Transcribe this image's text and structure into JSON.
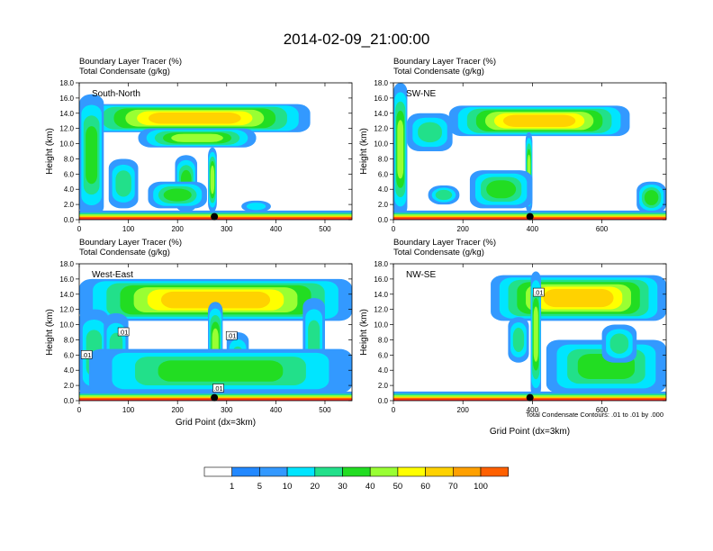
{
  "chart_data": {
    "type": "heatmap",
    "title": "2014-02-09_21:00:00",
    "colorbar": {
      "bin_labels": [
        "1",
        "5",
        "10",
        "20",
        "30",
        "40",
        "50",
        "60",
        "70",
        "100"
      ],
      "colors": [
        "#ffffff",
        "#2288ff",
        "#3399ff",
        "#00e5ff",
        "#22e08a",
        "#22dd22",
        "#99ff33",
        "#ffff00",
        "#ffd200",
        "#ffa000",
        "#ff6000",
        "#ff2020"
      ]
    },
    "footnote": "Total Condensate Contours: .01 to .01 by .000",
    "panels": [
      {
        "label": "South-North",
        "subtitle_line1": "Boundary Layer Tracer   (%)",
        "subtitle_line2": "Total Condensate   (g/kg)",
        "ylabel": "Height (km)",
        "xlabel": "",
        "ylim": [
          0,
          18
        ],
        "yticks": [
          "0.0",
          "2.0",
          "4.0",
          "6.0",
          "8.0",
          "10.0",
          "12.0",
          "14.0",
          "16.0",
          "18.0"
        ],
        "xlim": [
          0,
          555
        ],
        "xticks": [
          0,
          100,
          200,
          300,
          400,
          500
        ],
        "marker_x": 275,
        "contour_labels": [],
        "features": [
          {
            "kind": "anvil",
            "x0": 0,
            "x1": 470,
            "ybase": 11.5,
            "ytop": 15.2,
            "core": 7
          },
          {
            "kind": "anvil",
            "x0": 120,
            "x1": 360,
            "ybase": 9.5,
            "ytop": 12.0,
            "core": 5
          },
          {
            "kind": "column",
            "x0": 0,
            "x1": 50,
            "ybase": 0.5,
            "ytop": 16.5,
            "core": 4
          },
          {
            "kind": "column",
            "x0": 60,
            "x1": 120,
            "ybase": 1.5,
            "ytop": 8.0,
            "core": 3
          },
          {
            "kind": "column",
            "x0": 195,
            "x1": 240,
            "ybase": 1.0,
            "ytop": 8.5,
            "core": 4
          },
          {
            "kind": "column",
            "x0": 262,
            "x1": 280,
            "ybase": 1.0,
            "ytop": 9.5,
            "core": 5
          },
          {
            "kind": "blob",
            "x0": 140,
            "x1": 260,
            "ybase": 1.5,
            "ytop": 5.0,
            "core": 4
          },
          {
            "kind": "blob",
            "x0": 330,
            "x1": 390,
            "ybase": 1.0,
            "ytop": 2.5,
            "core": 2
          }
        ]
      },
      {
        "label": "SW-NE",
        "subtitle_line1": "Boundary Layer Tracer   (%)",
        "subtitle_line2": "Total Condensate   (g/kg)",
        "ylabel": "Height (km)",
        "xlabel": "",
        "ylim": [
          0,
          18
        ],
        "yticks": [
          "0.0",
          "2.0",
          "4.0",
          "6.0",
          "8.0",
          "10.0",
          "12.0",
          "14.0",
          "16.0",
          "18.0"
        ],
        "xlim": [
          0,
          785
        ],
        "xticks": [
          0,
          200,
          400,
          600
        ],
        "marker_x": 393,
        "contour_labels": [],
        "features": [
          {
            "kind": "anvil",
            "x0": 160,
            "x1": 680,
            "ybase": 11.0,
            "ytop": 15.0,
            "core": 7
          },
          {
            "kind": "column",
            "x0": 0,
            "x1": 40,
            "ybase": 0.5,
            "ytop": 18.0,
            "core": 5
          },
          {
            "kind": "column",
            "x0": 40,
            "x1": 170,
            "ybase": 9.0,
            "ytop": 14.0,
            "core": 3
          },
          {
            "kind": "column",
            "x0": 380,
            "x1": 400,
            "ybase": 1.0,
            "ytop": 11.5,
            "core": 5
          },
          {
            "kind": "blob",
            "x0": 220,
            "x1": 400,
            "ybase": 1.5,
            "ytop": 6.5,
            "core": 4
          },
          {
            "kind": "blob",
            "x0": 100,
            "x1": 190,
            "ybase": 2.0,
            "ytop": 4.5,
            "core": 3
          },
          {
            "kind": "blob",
            "x0": 700,
            "x1": 785,
            "ybase": 0.8,
            "ytop": 5.0,
            "core": 4
          }
        ]
      },
      {
        "label": "West-East",
        "subtitle_line1": "Boundary Layer Tracer   (%)",
        "subtitle_line2": "Total Condensate   (g/kg)",
        "ylabel": "Height (km)",
        "xlabel": "Grid Point (dx=3km)",
        "ylim": [
          0,
          18
        ],
        "yticks": [
          "0.0",
          "2.0",
          "4.0",
          "6.0",
          "8.0",
          "10.0",
          "12.0",
          "14.0",
          "16.0",
          "18.0"
        ],
        "xlim": [
          0,
          555
        ],
        "xticks": [
          0,
          100,
          200,
          300,
          400,
          500
        ],
        "marker_x": 275,
        "contour_labels": [
          {
            "text": ".01",
            "x": 90,
            "y": 9.0
          },
          {
            "text": ".01",
            "x": 15,
            "y": 6.0
          },
          {
            "text": ".01",
            "x": 310,
            "y": 8.5
          },
          {
            "text": ".01",
            "x": 283,
            "y": 1.6
          }
        ],
        "features": [
          {
            "kind": "anvil",
            "x0": 0,
            "x1": 555,
            "ybase": 10.5,
            "ytop": 16.0,
            "core": 7
          },
          {
            "kind": "column",
            "x0": 0,
            "x1": 60,
            "ybase": 0.5,
            "ytop": 12.0,
            "core": 3
          },
          {
            "kind": "column",
            "x0": 50,
            "x1": 100,
            "ybase": 0.5,
            "ytop": 11.5,
            "core": 3
          },
          {
            "kind": "column",
            "x0": 262,
            "x1": 292,
            "ybase": 0.5,
            "ytop": 13.0,
            "core": 5
          },
          {
            "kind": "column",
            "x0": 300,
            "x1": 345,
            "ybase": 1.0,
            "ytop": 9.0,
            "core": 3
          },
          {
            "kind": "column",
            "x0": 455,
            "x1": 500,
            "ybase": 1.0,
            "ytop": 13.5,
            "core": 3
          },
          {
            "kind": "blob",
            "x0": 20,
            "x1": 555,
            "ybase": 1.0,
            "ytop": 6.8,
            "core": 4
          }
        ]
      },
      {
        "label": "NW-SE",
        "subtitle_line1": "Boundary Layer Tracer   (%)",
        "subtitle_line2": "Total Condensate   (g/kg)",
        "ylabel": "Height (km)",
        "xlabel": "Grid Point (dx=3km)",
        "ylim": [
          0,
          18
        ],
        "yticks": [
          "0.0",
          "2.0",
          "4.0",
          "6.0",
          "8.0",
          "10.0",
          "12.0",
          "14.0",
          "16.0",
          "18.0"
        ],
        "xlim": [
          0,
          785
        ],
        "xticks": [
          0,
          200,
          400,
          600
        ],
        "marker_x": 393,
        "contour_labels": [
          {
            "text": ".01",
            "x": 418,
            "y": 14.2
          }
        ],
        "features": [
          {
            "kind": "anvil",
            "x0": 280,
            "x1": 785,
            "ybase": 10.5,
            "ytop": 16.5,
            "core": 7
          },
          {
            "kind": "column",
            "x0": 395,
            "x1": 425,
            "ybase": 0.5,
            "ytop": 17.0,
            "core": 5
          },
          {
            "kind": "column",
            "x0": 330,
            "x1": 390,
            "ybase": 5.0,
            "ytop": 11.0,
            "core": 3
          },
          {
            "kind": "blob",
            "x0": 440,
            "x1": 785,
            "ybase": 1.0,
            "ytop": 8.0,
            "core": 4
          },
          {
            "kind": "blob",
            "x0": 600,
            "x1": 700,
            "ybase": 5.0,
            "ytop": 10.0,
            "core": 3
          }
        ]
      }
    ]
  }
}
